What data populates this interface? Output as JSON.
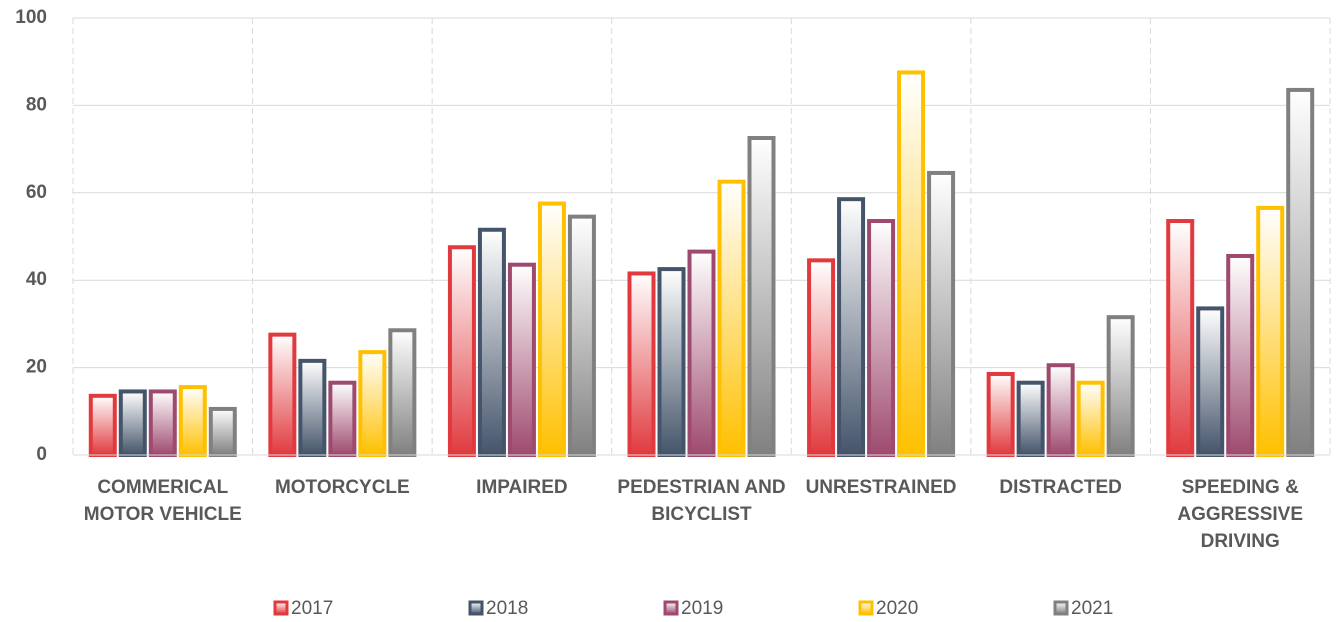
{
  "chart_data": {
    "type": "bar",
    "categories": [
      "COMMERICAL MOTOR VEHICLE",
      "MOTORCYCLE",
      "IMPAIRED",
      "PEDESTRIAN AND BICYCLIST",
      "UNRESTRAINED",
      "DISTRACTED",
      "SPEEDING & AGGRESSIVE DRIVING"
    ],
    "series": [
      {
        "name": "2017",
        "color": "#e03a3e",
        "values": [
          14,
          28,
          48,
          42,
          45,
          19,
          54
        ]
      },
      {
        "name": "2018",
        "color": "#44546a",
        "values": [
          15,
          22,
          52,
          43,
          59,
          17,
          34
        ]
      },
      {
        "name": "2019",
        "color": "#9e4a6e",
        "values": [
          15,
          17,
          44,
          47,
          54,
          21,
          46
        ]
      },
      {
        "name": "2020",
        "color": "#ffc000",
        "values": [
          16,
          24,
          58,
          63,
          88,
          17,
          57
        ]
      },
      {
        "name": "2021",
        "color": "#808080",
        "values": [
          11,
          29,
          55,
          73,
          65,
          32,
          84
        ]
      }
    ],
    "ylim": [
      0,
      100
    ],
    "yticks": [
      0,
      20,
      40,
      60,
      80,
      100
    ],
    "grid": true,
    "legend": "bottom"
  }
}
